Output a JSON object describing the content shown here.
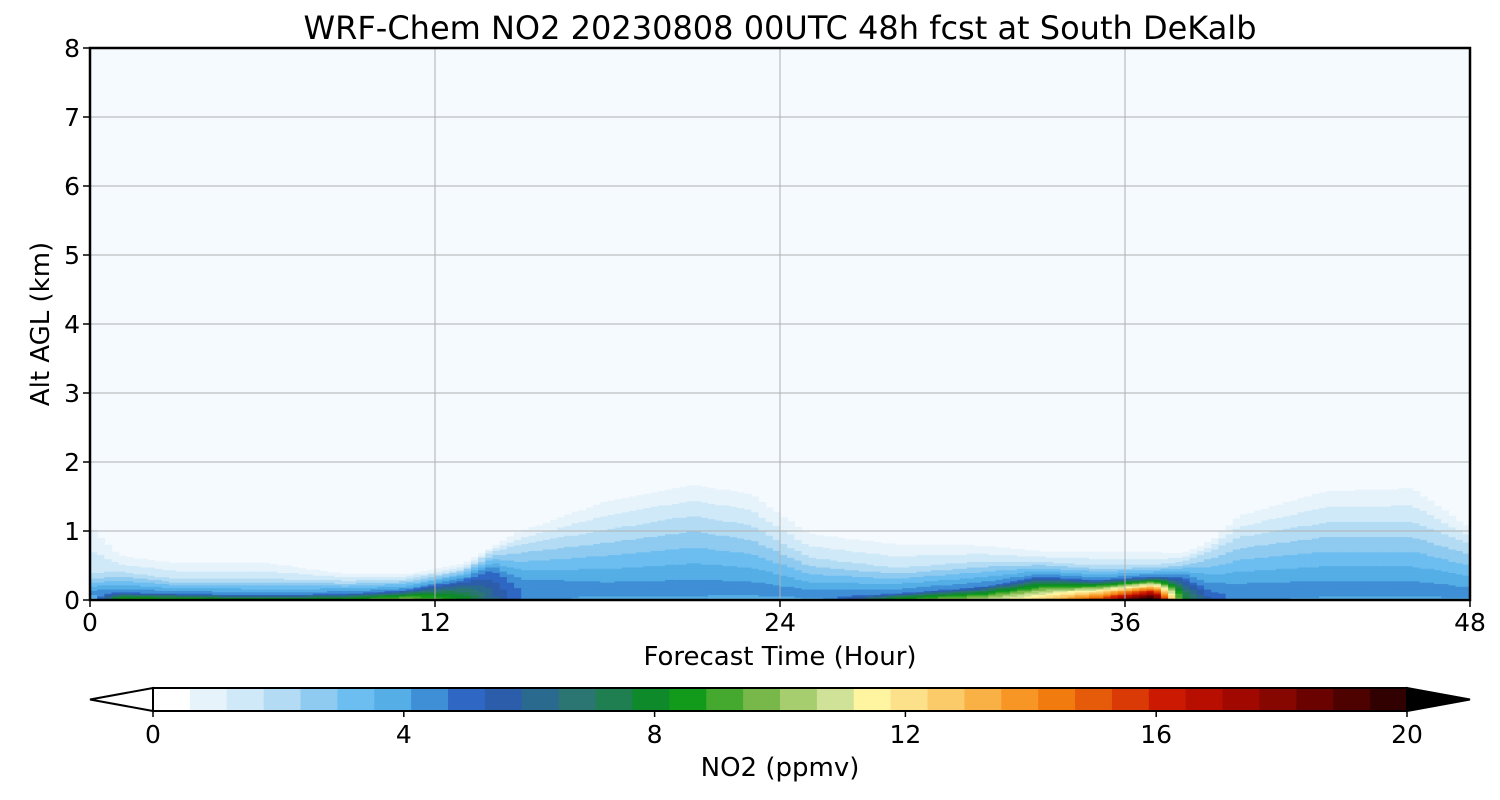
{
  "chart_data": {
    "type": "heatmap",
    "title": "WRF-Chem NO2  20230808 00UTC 48h fcst at South DeKalb",
    "xlabel": "Forecast Time (Hour)",
    "ylabel": "Alt AGL (km)",
    "xlim": [
      0,
      48
    ],
    "ylim": [
      0,
      8
    ],
    "xticks": [
      0,
      12,
      24,
      36,
      48
    ],
    "yticks": [
      0,
      1,
      2,
      3,
      4,
      5,
      6,
      7,
      8
    ],
    "grid": true,
    "colorbar": {
      "label": "NO2  (ppmv)",
      "range": [
        0,
        20
      ],
      "ticks": [
        0,
        4,
        8,
        12,
        16,
        20
      ],
      "extend": "both",
      "colors": [
        "#ffffff",
        "#e6f3fb",
        "#cfe9f8",
        "#b3dcf4",
        "#8fcaf0",
        "#6cbdf0",
        "#55aee6",
        "#3f8fd6",
        "#2f67c4",
        "#2c5daa",
        "#2a6a8e",
        "#2b7572",
        "#1f7f50",
        "#0e8a2a",
        "#129a1a",
        "#45a82f",
        "#78b84a",
        "#a6cd6e",
        "#cfe297",
        "#fff4a0",
        "#fde08a",
        "#fbcb6a",
        "#f9b146",
        "#f79624",
        "#f27b10",
        "#e55b0a",
        "#d93a06",
        "#cc1a02",
        "#b80e00",
        "#a00800",
        "#860600",
        "#6a0300",
        "#4e0200",
        "#300100",
        "#000000"
      ]
    },
    "profiles": [
      {
        "x": 0,
        "top": 0.1,
        "mid": 0.35,
        "haze": 1.25,
        "peak": 2.0
      },
      {
        "x": 1,
        "top": 0.12,
        "mid": 0.4,
        "haze": 0.7,
        "peak": 9.0
      },
      {
        "x": 3,
        "top": 0.1,
        "mid": 0.3,
        "haze": 0.6,
        "peak": 9.2
      },
      {
        "x": 6,
        "top": 0.08,
        "mid": 0.3,
        "haze": 0.6,
        "peak": 8.6
      },
      {
        "x": 9,
        "top": 0.1,
        "mid": 0.28,
        "haze": 0.4,
        "peak": 9.0
      },
      {
        "x": 11,
        "top": 0.15,
        "mid": 0.3,
        "haze": 0.4,
        "peak": 10.0
      },
      {
        "x": 13,
        "top": 0.3,
        "mid": 0.45,
        "haze": 0.55,
        "peak": 8.0
      },
      {
        "x": 14,
        "top": 0.45,
        "mid": 0.7,
        "haze": 0.8,
        "peak": 6.0
      },
      {
        "x": 15,
        "top": 0.2,
        "mid": 0.8,
        "haze": 1.05,
        "peak": 4.6
      },
      {
        "x": 18,
        "top": 0.1,
        "mid": 1.0,
        "haze": 1.55,
        "peak": 3.4
      },
      {
        "x": 21,
        "top": 0.1,
        "mid": 1.2,
        "haze": 1.8,
        "peak": 3.2
      },
      {
        "x": 23,
        "top": 0.1,
        "mid": 1.05,
        "haze": 1.65,
        "peak": 3.0
      },
      {
        "x": 25,
        "top": 0.05,
        "mid": 0.6,
        "haze": 1.05,
        "peak": 2.6
      },
      {
        "x": 28,
        "top": 0.1,
        "mid": 0.45,
        "haze": 0.9,
        "peak": 9.0
      },
      {
        "x": 31,
        "top": 0.2,
        "mid": 0.55,
        "haze": 0.85,
        "peak": 10.5
      },
      {
        "x": 33,
        "top": 0.35,
        "mid": 0.55,
        "haze": 0.75,
        "peak": 12.0
      },
      {
        "x": 35,
        "top": 0.3,
        "mid": 0.5,
        "haze": 0.75,
        "peak": 15.0
      },
      {
        "x": 37,
        "top": 0.35,
        "mid": 0.5,
        "haze": 0.75,
        "peak": 20.0
      },
      {
        "x": 38,
        "top": 0.35,
        "mid": 0.55,
        "haze": 0.7,
        "peak": 8.0
      },
      {
        "x": 39,
        "top": 0.15,
        "mid": 0.7,
        "haze": 0.9,
        "peak": 5.0
      },
      {
        "x": 40,
        "top": 0.1,
        "mid": 0.9,
        "haze": 1.3,
        "peak": 4.2
      },
      {
        "x": 43,
        "top": 0.1,
        "mid": 1.1,
        "haze": 1.7,
        "peak": 3.6
      },
      {
        "x": 46,
        "top": 0.1,
        "mid": 1.1,
        "haze": 1.75,
        "peak": 3.4
      },
      {
        "x": 48,
        "top": 0.05,
        "mid": 0.8,
        "haze": 1.1,
        "peak": 3.2
      }
    ]
  }
}
